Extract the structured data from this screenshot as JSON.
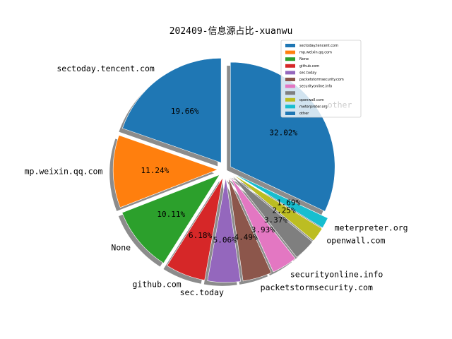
{
  "chart_data": {
    "type": "pie",
    "title": "202409-信息源占比-xuanwu",
    "categories": [
      "sectoday.tencent.com",
      "mp.weixin.qq.com",
      "None",
      "github.com",
      "sec.today",
      "packetstormsecurity.com",
      "securityonline.info",
      "",
      "openwall.com",
      "meterpreter.org",
      "other"
    ],
    "values": [
      19.66,
      11.24,
      10.11,
      6.18,
      5.06,
      4.49,
      3.93,
      3.37,
      2.25,
      1.69,
      32.02
    ],
    "value_labels": [
      "19.66%",
      "11.24%",
      "10.11%",
      "6.18%",
      "5.06%",
      "4.49%",
      "3.93%",
      "3.37%",
      "2.25%",
      "1.69%",
      "32.02%"
    ],
    "colors": [
      "#1f77b4",
      "#ff7f0e",
      "#2ca02c",
      "#d62728",
      "#9467bd",
      "#8c564b",
      "#e377c2",
      "#7f7f7f",
      "#bcbd22",
      "#17becf",
      "#1f77b4"
    ],
    "legend": {
      "placement": "top-right",
      "entries": [
        "sectoday.tencent.com",
        "mp.weixin.qq.com",
        "None",
        "github.com",
        "sec.today",
        "packetstormsecurity.com",
        "securityonline.info",
        "",
        "openwall.com",
        "meterpreter.org",
        "other"
      ]
    }
  }
}
